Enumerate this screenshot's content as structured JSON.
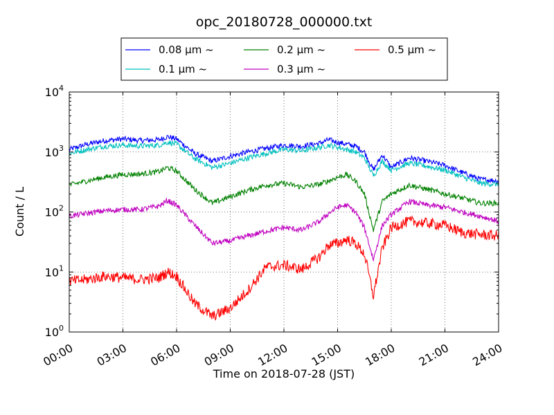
{
  "chart_data": {
    "type": "line",
    "title": "opc_20180728_000000.txt",
    "xlabel": "Time on 2018-07-28 (JST)",
    "ylabel": "Count / L",
    "yscale": "log",
    "xlim": [
      "00:00",
      "24:00"
    ],
    "ylim": [
      1,
      10000
    ],
    "grid": true,
    "legend_position": "top (above plot)",
    "x_ticks": [
      "00:00",
      "03:00",
      "06:00",
      "09:00",
      "12:00",
      "15:00",
      "18:00",
      "21:00",
      "24:00"
    ],
    "y_ticks": [
      {
        "value": 1,
        "base": "10",
        "exp": "0"
      },
      {
        "value": 10,
        "base": "10",
        "exp": "1"
      },
      {
        "value": 100,
        "base": "10",
        "exp": "2"
      },
      {
        "value": 1000,
        "base": "10",
        "exp": "3"
      },
      {
        "value": 10000,
        "base": "10",
        "exp": "4"
      }
    ],
    "x": [
      "00:00",
      "01:00",
      "02:00",
      "03:00",
      "04:00",
      "05:00",
      "05:30",
      "06:00",
      "07:00",
      "08:00",
      "09:00",
      "10:00",
      "11:00",
      "12:00",
      "13:00",
      "14:00",
      "14:30",
      "15:00",
      "15:30",
      "16:00",
      "16:30",
      "17:00",
      "17:30",
      "18:00",
      "19:00",
      "20:00",
      "21:00",
      "22:00",
      "23:00",
      "24:00"
    ],
    "series": [
      {
        "name": "0.08 μm ~",
        "color": "#0000ff",
        "values": [
          1100,
          1350,
          1550,
          1650,
          1550,
          1600,
          1800,
          1650,
          950,
          700,
          850,
          1000,
          1150,
          1300,
          1250,
          1400,
          1600,
          1450,
          1350,
          1250,
          1000,
          500,
          900,
          550,
          800,
          700,
          600,
          450,
          350,
          330
        ]
      },
      {
        "name": "0.1 μm ~",
        "color": "#00bfbf",
        "values": [
          950,
          1100,
          1250,
          1300,
          1250,
          1300,
          1450,
          1350,
          780,
          550,
          650,
          800,
          950,
          1100,
          1050,
          1200,
          1300,
          1200,
          1100,
          1000,
          800,
          400,
          700,
          500,
          650,
          580,
          500,
          380,
          300,
          290
        ]
      },
      {
        "name": "0.2 μm ~",
        "color": "#008000",
        "values": [
          280,
          330,
          380,
          420,
          430,
          470,
          550,
          480,
          240,
          140,
          180,
          230,
          280,
          300,
          260,
          290,
          330,
          380,
          420,
          330,
          200,
          50,
          150,
          200,
          280,
          240,
          200,
          170,
          140,
          140
        ]
      },
      {
        "name": "0.3 μm ~",
        "color": "#bf00bf",
        "values": [
          85,
          95,
          105,
          110,
          110,
          125,
          155,
          130,
          60,
          30,
          33,
          40,
          48,
          55,
          50,
          70,
          95,
          120,
          130,
          100,
          55,
          16,
          60,
          90,
          150,
          130,
          120,
          100,
          85,
          70
        ]
      },
      {
        "name": "0.5 μm ~",
        "color": "#ff0000",
        "values": [
          7,
          7.5,
          8.5,
          8,
          7.5,
          8,
          10,
          8.5,
          3,
          1.8,
          2.5,
          5,
          12,
          13,
          11,
          18,
          28,
          30,
          35,
          30,
          20,
          4,
          25,
          55,
          70,
          65,
          60,
          45,
          42,
          40
        ]
      }
    ]
  }
}
